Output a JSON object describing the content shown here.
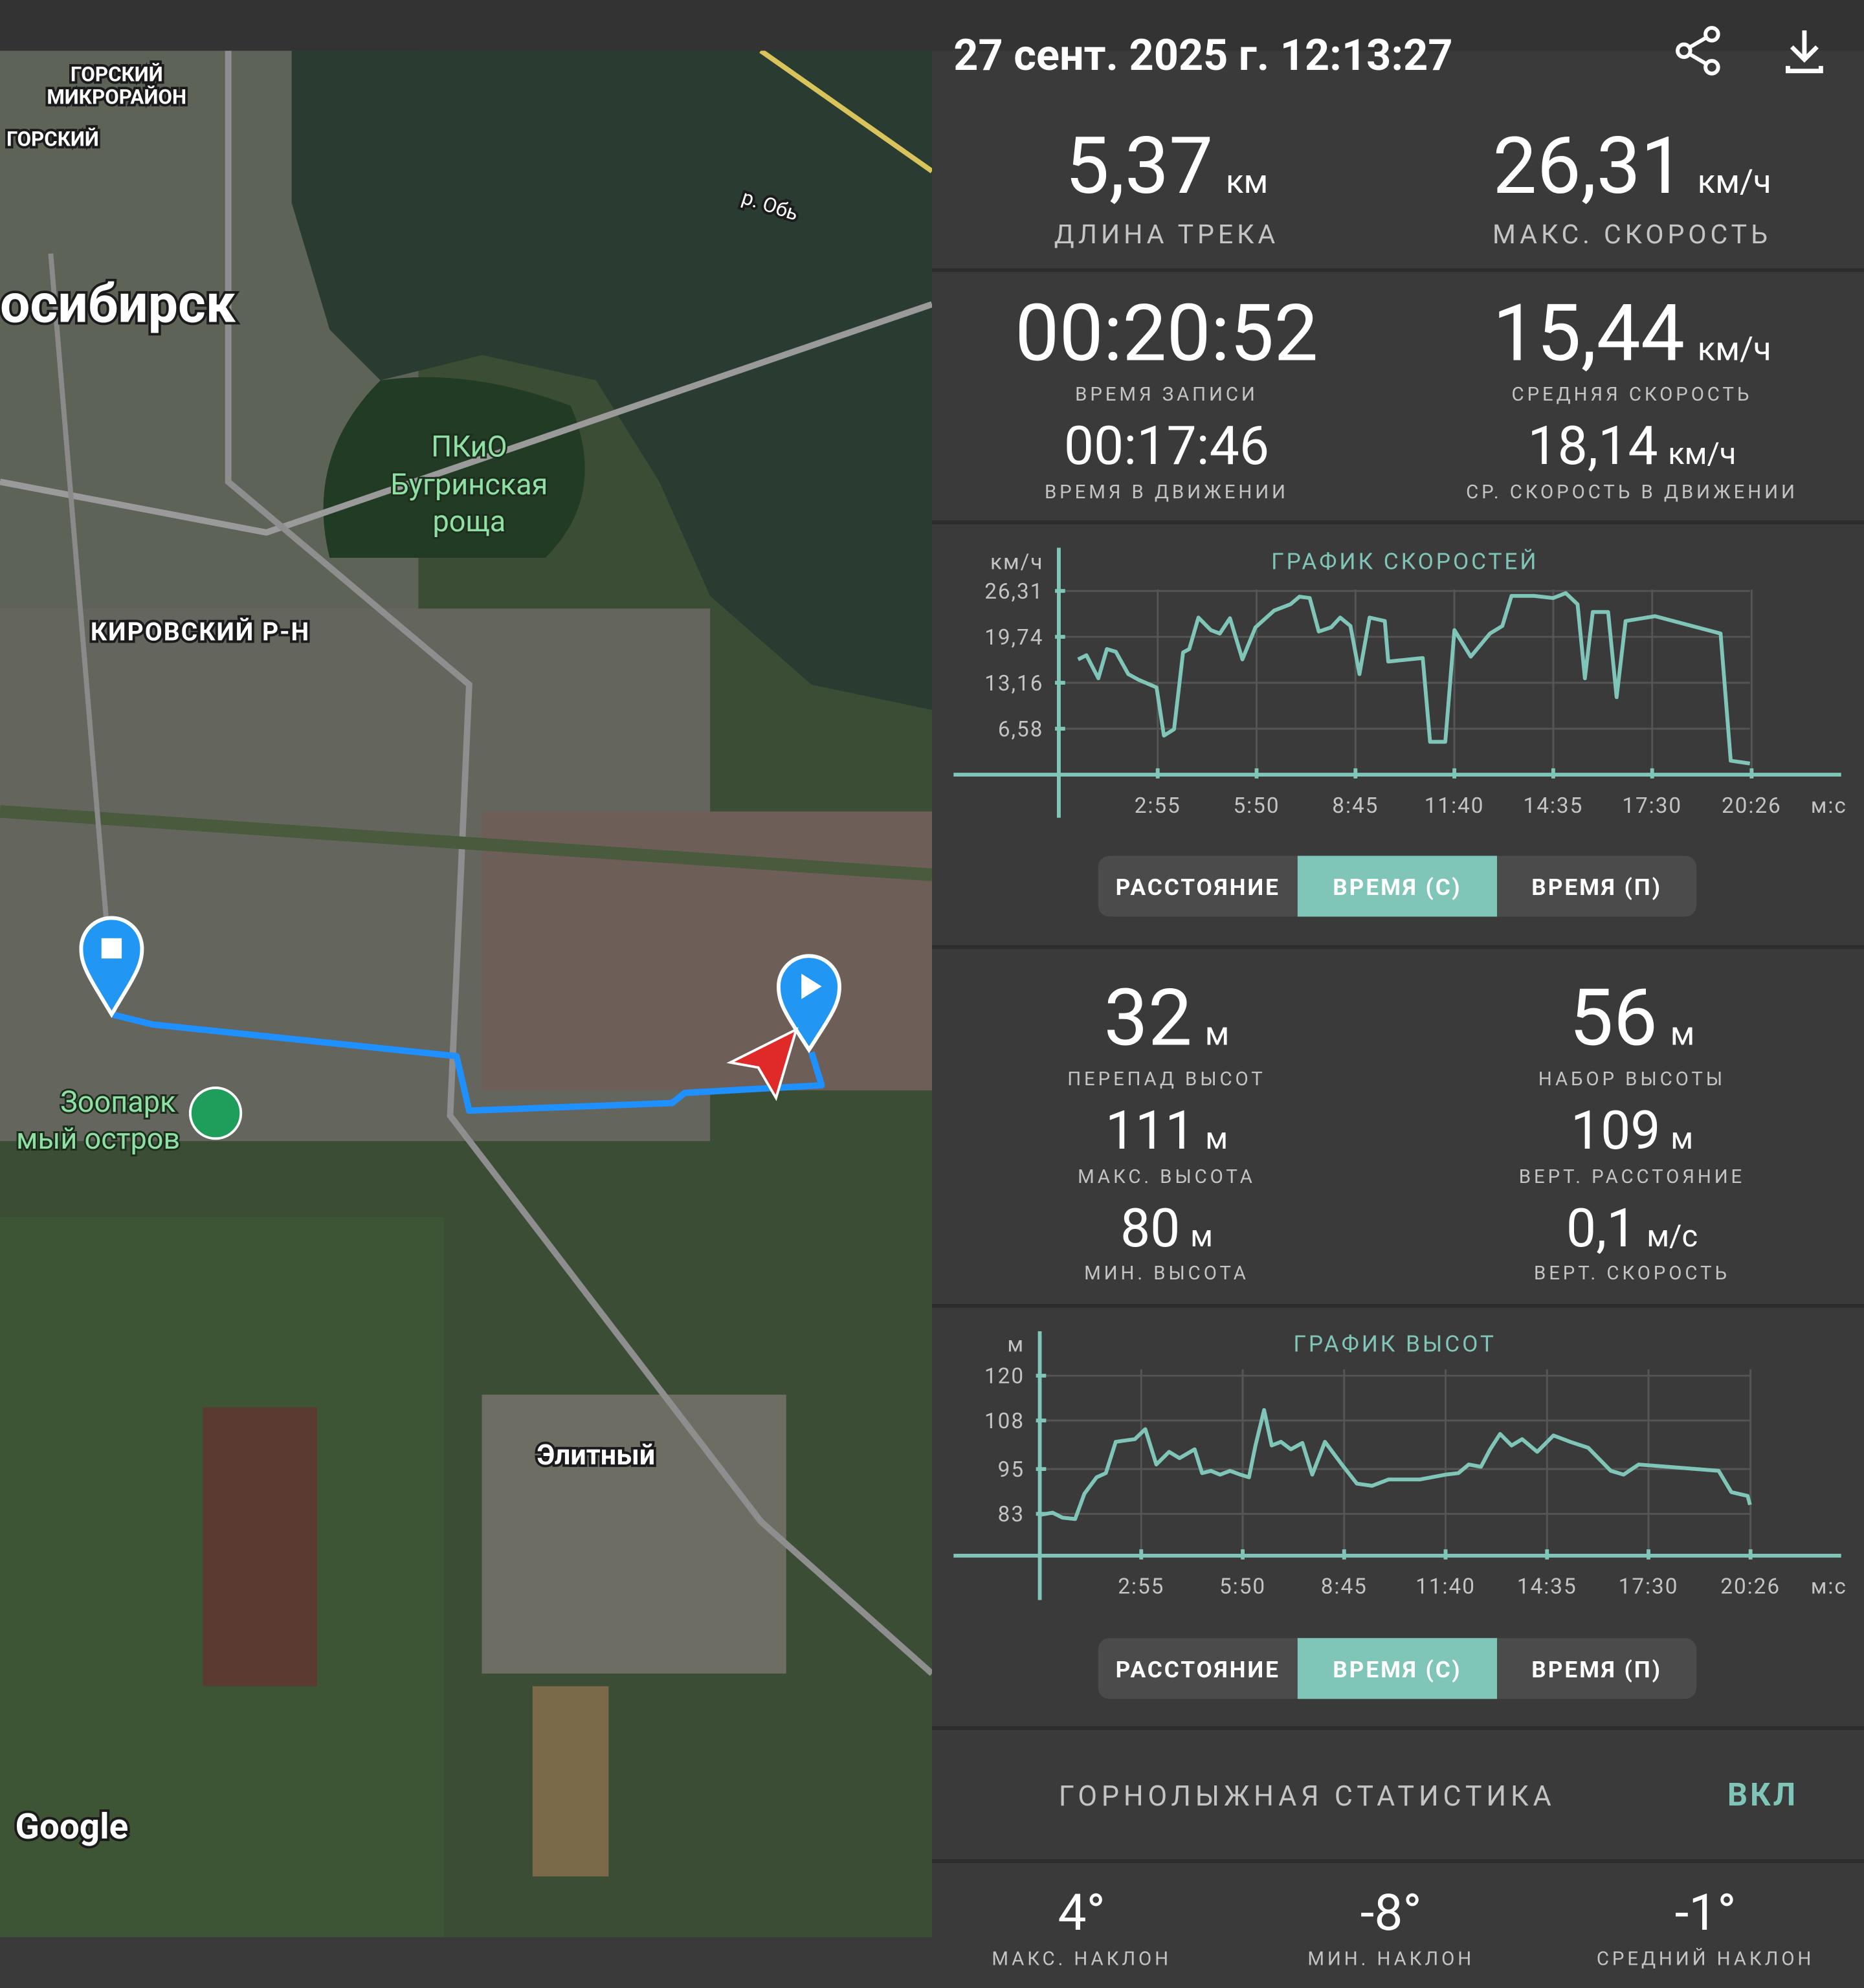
{
  "header": {
    "title": "27 сент. 2025 г. 12:13:27"
  },
  "map": {
    "labels": [
      "ГОРСКИЙ",
      "МИКРОРАЙОН",
      "ГОРСКИЙ",
      "осибирск",
      "р. Обь",
      "ПКиО",
      "Бугринская",
      "роща",
      "КИРОВСКИЙ Р-Н",
      "Зоопарк",
      "мый остров",
      "Элитный",
      "Google"
    ]
  },
  "summary": [
    {
      "value": "5,37",
      "unit": "км",
      "label": "ДЛИНА ТРЕКА"
    },
    {
      "value": "26,31",
      "unit": "км/ч",
      "label": "МАКС. СКОРОСТЬ"
    }
  ],
  "time_speed": [
    {
      "value": "00:20:52",
      "label": "ВРЕМЯ ЗАПИСИ"
    },
    {
      "value": "15,44",
      "unit": "км/ч",
      "label": "СРЕДНЯЯ СКОРОСТЬ"
    },
    {
      "value": "00:17:46",
      "label": "ВРЕМЯ В ДВИЖЕНИИ"
    },
    {
      "value": "18,14",
      "unit": "км/ч",
      "label": "СР. СКОРОСТЬ В ДВИЖЕНИИ"
    }
  ],
  "altitude_stats": [
    {
      "value": "32",
      "unit": "м",
      "label": "ПЕРЕПАД ВЫСОТ"
    },
    {
      "value": "56",
      "unit": "м",
      "label": "НАБОР ВЫСОТЫ"
    },
    {
      "value": "111",
      "unit": "м",
      "label": "МАКС. ВЫСОТА"
    },
    {
      "value": "109",
      "unit": "м",
      "label": "ВЕРТ. РАССТОЯНИЕ"
    },
    {
      "value": "80",
      "unit": "м",
      "label": "МИН. ВЫСОТА"
    },
    {
      "value": "0,1",
      "unit": "м/с",
      "label": "ВЕРТ. СКОРОСТЬ"
    }
  ],
  "chart_controls": [
    {
      "options": [
        "РАССТОЯНИЕ",
        "ВРЕМЯ (С)",
        "ВРЕМЯ (П)"
      ],
      "selected": 1
    },
    {
      "options": [
        "РАССТОЯНИЕ",
        "ВРЕМЯ (С)",
        "ВРЕМЯ (П)"
      ],
      "selected": 1
    }
  ],
  "ski": {
    "title": "ГОРНОЛЫЖНАЯ СТАТИСТИКА",
    "toggle": "ВКЛ"
  },
  "slopes": [
    {
      "value": "4°",
      "label": "МАКС. НАКЛОН"
    },
    {
      "value": "-8°",
      "label": "МИН. НАКЛОН"
    },
    {
      "value": "-1°",
      "label": "СРЕДНИЙ НАКЛОН"
    }
  ],
  "chart_data": [
    {
      "type": "line",
      "title": "ГРАФИК СКОРОСТЕЙ",
      "y_label": "км/ч",
      "x_label": "м:с",
      "x": [
        34,
        49,
        70,
        85,
        101,
        123,
        141,
        173,
        186,
        204,
        220,
        231,
        247,
        269,
        285,
        303,
        325,
        348,
        381,
        410,
        426,
        444,
        460,
        482,
        498,
        516,
        532,
        550,
        577,
        583,
        644,
        657,
        684,
        700,
        729,
        763,
        785,
        801,
        841,
        875,
        897,
        918,
        931,
        945,
        972,
        987,
        1003,
        1055,
        1171,
        1189,
        1223
      ],
      "series": [
        {
          "color": "#7fc5b8",
          "values": [
            16.5,
            17.1,
            13.8,
            18.0,
            17.6,
            14.4,
            13.6,
            12.5,
            5.6,
            6.5,
            17.5,
            18.0,
            22.5,
            20.7,
            20.2,
            22.4,
            16.5,
            21.1,
            23.5,
            24.4,
            25.5,
            25.3,
            20.5,
            21.1,
            22.5,
            21.3,
            14.4,
            22.5,
            22.0,
            16.2,
            16.7,
            4.7,
            4.7,
            20.7,
            16.9,
            20.2,
            21.3,
            25.6,
            25.6,
            25.3,
            26.0,
            24.4,
            13.8,
            23.3,
            23.3,
            11.1,
            22.0,
            22.7,
            20.2,
            2.0,
            1.6
          ]
        }
      ],
      "xlim": [
        0,
        1380
      ],
      "ylim": [
        0,
        32.5
      ],
      "xticks": [
        {
          "value": 175,
          "label": "2:55"
        },
        {
          "value": 350,
          "label": "5:50"
        },
        {
          "value": 525,
          "label": "8:45"
        },
        {
          "value": 700,
          "label": "11:40"
        },
        {
          "value": 875,
          "label": "14:35"
        },
        {
          "value": 1050,
          "label": "17:30"
        },
        {
          "value": 1226,
          "label": "20:26"
        }
      ],
      "yticks": [
        {
          "value": 6.58,
          "label": "6,58"
        },
        {
          "value": 13.16,
          "label": "13,16"
        },
        {
          "value": 19.74,
          "label": "19,74"
        },
        {
          "value": 26.31,
          "label": "26,31"
        }
      ],
      "grid": true
    },
    {
      "type": "line",
      "title": "ГРАФИК ВЫСОТ",
      "y_label": "м",
      "x_label": "м:с",
      "x": [
        0,
        22,
        39,
        61,
        77,
        98,
        114,
        131,
        164,
        182,
        201,
        223,
        241,
        267,
        280,
        295,
        311,
        328,
        346,
        361,
        372,
        387,
        400,
        416,
        433,
        453,
        470,
        492,
        521,
        547,
        573,
        602,
        656,
        700,
        722,
        740,
        761,
        777,
        794,
        814,
        832,
        858,
        886,
        915,
        946,
        985,
        1007,
        1033,
        1171,
        1193,
        1221,
        1225
      ],
      "series": [
        {
          "color": "#7fc5b8",
          "values": [
            82.7,
            83.3,
            82.0,
            81.6,
            88.4,
            92.8,
            93.9,
            102.3,
            103.0,
            105.7,
            96.2,
            99.6,
            97.9,
            100.3,
            93.9,
            94.5,
            93.5,
            94.5,
            93.5,
            92.8,
            101.3,
            110.8,
            101.3,
            102.3,
            100.3,
            102.0,
            93.5,
            102.3,
            96.2,
            91.1,
            90.5,
            92.2,
            92.2,
            93.5,
            93.9,
            96.2,
            95.6,
            100.3,
            104.4,
            101.3,
            103.0,
            99.6,
            104.0,
            102.3,
            100.7,
            94.5,
            93.5,
            96.2,
            94.5,
            88.8,
            87.8,
            85.4
          ]
        }
      ],
      "xlim": [
        0,
        1378
      ],
      "ylim": [
        71.8,
        131.9
      ],
      "xticks": [
        {
          "value": 175,
          "label": "2:55"
        },
        {
          "value": 350,
          "label": "5:50"
        },
        {
          "value": 525,
          "label": "8:45"
        },
        {
          "value": 700,
          "label": "11:40"
        },
        {
          "value": 875,
          "label": "14:35"
        },
        {
          "value": 1050,
          "label": "17:30"
        },
        {
          "value": 1226,
          "label": "20:26"
        }
      ],
      "yticks": [
        83,
        95,
        108,
        120
      ],
      "grid": true
    }
  ]
}
